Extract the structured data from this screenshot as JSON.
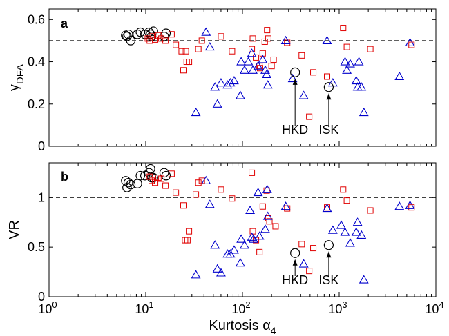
{
  "chart_data": [
    {
      "panel": "a",
      "type": "scatter",
      "xscale": "log",
      "xlim": [
        1,
        10000
      ],
      "ylim": [
        0,
        0.65
      ],
      "ylabel": "γ",
      "ylabel_sub": "DFA",
      "xlabel": "",
      "yticks": [
        "0",
        "0.2",
        "0.4",
        "0.6"
      ],
      "reference_line": 0.5,
      "grid": false,
      "series": [
        {
          "marker": "circle",
          "color": "#000000",
          "points": [
            [
              6.2,
              0.525
            ],
            [
              6.4,
              0.52
            ],
            [
              6.6,
              0.53
            ],
            [
              7,
              0.5
            ],
            [
              8.2,
              0.53
            ],
            [
              8.8,
              0.54
            ],
            [
              9.8,
              0.53
            ],
            [
              10.8,
              0.54
            ],
            [
              11.2,
              0.53
            ],
            [
              11.5,
              0.52
            ],
            [
              12,
              0.545
            ],
            [
              15.5,
              0.52
            ],
            [
              16.2,
              0.535
            ]
          ]
        },
        {
          "marker": "square",
          "color": "#e00000",
          "points": [
            [
              10.5,
              0.51
            ],
            [
              11,
              0.5
            ],
            [
              11.5,
              0.52
            ],
            [
              12.5,
              0.505
            ],
            [
              13.5,
              0.525
            ],
            [
              14.5,
              0.51
            ],
            [
              16,
              0.5
            ],
            [
              18.5,
              0.53
            ],
            [
              20.5,
              0.48
            ],
            [
              23.5,
              0.45
            ],
            [
              24.5,
              0.36
            ],
            [
              26,
              0.45
            ],
            [
              26.5,
              0.4
            ],
            [
              28,
              0.4
            ],
            [
              35,
              0.46
            ],
            [
              38,
              0.5
            ],
            [
              60,
              0.52
            ],
            [
              78,
              0.45
            ],
            [
              125,
              0.46
            ],
            [
              128,
              0.51
            ],
            [
              138,
              0.42
            ],
            [
              150,
              0.38
            ],
            [
              152,
              0.37
            ],
            [
              162,
              0.44
            ],
            [
              170,
              0.495
            ],
            [
              180,
              0.55
            ],
            [
              185,
              0.51
            ],
            [
              200,
              0.38
            ],
            [
              210,
              0.41
            ],
            [
              290,
              0.49
            ],
            [
              410,
              0.43
            ],
            [
              490,
              0.14
            ],
            [
              540,
              0.35
            ],
            [
              750,
              0.33
            ],
            [
              1100,
              0.56
            ],
            [
              1200,
              0.47
            ],
            [
              2100,
              0.46
            ],
            [
              5600,
              0.48
            ]
          ]
        },
        {
          "marker": "triangle",
          "color": "#0000cc",
          "points": [
            [
              33,
              0.16
            ],
            [
              42,
              0.54
            ],
            [
              46,
              0.47
            ],
            [
              52,
              0.28
            ],
            [
              55,
              0.2
            ],
            [
              60,
              0.3
            ],
            [
              70,
              0.29
            ],
            [
              75,
              0.3
            ],
            [
              82,
              0.31
            ],
            [
              95,
              0.24
            ],
            [
              97,
              0.4
            ],
            [
              105,
              0.36
            ],
            [
              115,
              0.4
            ],
            [
              125,
              0.44
            ],
            [
              128,
              0.36
            ],
            [
              145,
              0.38
            ],
            [
              162,
              0.41
            ],
            [
              172,
              0.36
            ],
            [
              178,
              0.34
            ],
            [
              183,
              0.29
            ],
            [
              280,
              0.5
            ],
            [
              330,
              0.32
            ],
            [
              430,
              0.24
            ],
            [
              750,
              0.5
            ],
            [
              860,
              0.3
            ],
            [
              1150,
              0.4
            ],
            [
              1200,
              0.36
            ],
            [
              1300,
              0.39
            ],
            [
              1500,
              0.31
            ],
            [
              1550,
              0.28
            ],
            [
              1600,
              0.4
            ],
            [
              1700,
              0.28
            ],
            [
              1800,
              0.16
            ],
            [
              4200,
              0.33
            ],
            [
              5400,
              0.49
            ]
          ]
        }
      ],
      "annotations": [
        {
          "label": "HKD",
          "x": 350,
          "y": 0.35
        },
        {
          "label": "ISK",
          "x": 780,
          "y": 0.28
        }
      ]
    },
    {
      "panel": "b",
      "type": "scatter",
      "xscale": "log",
      "xlim": [
        1,
        10000
      ],
      "ylim": [
        0,
        1.35
      ],
      "ylabel": "VR",
      "xlabel": "Kurtosis α",
      "xlabel_sub": "4",
      "yticks": [
        "0",
        "0.5",
        "1"
      ],
      "xticks": [
        {
          "base": "10",
          "exp": "0"
        },
        {
          "base": "10",
          "exp": "1"
        },
        {
          "base": "10",
          "exp": "2"
        },
        {
          "base": "10",
          "exp": "3"
        },
        {
          "base": "10",
          "exp": "4"
        }
      ],
      "reference_line": 1.0,
      "grid": false,
      "series": [
        {
          "marker": "circle",
          "color": "#000000",
          "points": [
            [
              6.2,
              1.17
            ],
            [
              6.4,
              1.1
            ],
            [
              6.6,
              1.15
            ],
            [
              7,
              1.13
            ],
            [
              8.2,
              1.14
            ],
            [
              8.8,
              1.22
            ],
            [
              9.8,
              1.22
            ],
            [
              10.8,
              1.25
            ],
            [
              11.2,
              1.29
            ],
            [
              11.5,
              1.2
            ],
            [
              12,
              1.2
            ],
            [
              15.5,
              1.25
            ],
            [
              16.2,
              1.22
            ]
          ]
        },
        {
          "marker": "square",
          "color": "#e00000",
          "points": [
            [
              11,
              1.21
            ],
            [
              11.5,
              1.17
            ],
            [
              12.5,
              1.15
            ],
            [
              13.5,
              1.2
            ],
            [
              14.5,
              1.19
            ],
            [
              16,
              1.12
            ],
            [
              18.5,
              1.24
            ],
            [
              20.5,
              1.05
            ],
            [
              24.5,
              0.92
            ],
            [
              25.5,
              0.57
            ],
            [
              27,
              0.57
            ],
            [
              28,
              0.66
            ],
            [
              33,
              1.03
            ],
            [
              35,
              1.15
            ],
            [
              38,
              1.17
            ],
            [
              60,
              1.08
            ],
            [
              78,
              0.99
            ],
            [
              125,
              1.25
            ],
            [
              128,
              0.66
            ],
            [
              138,
              0.57
            ],
            [
              150,
              0.45
            ],
            [
              162,
              0.91
            ],
            [
              178,
              1.07
            ],
            [
              185,
              0.79
            ],
            [
              190,
              0.76
            ],
            [
              220,
              0.71
            ],
            [
              290,
              0.89
            ],
            [
              410,
              0.53
            ],
            [
              490,
              0.26
            ],
            [
              540,
              0.49
            ],
            [
              750,
              0.9
            ],
            [
              1100,
              1.08
            ],
            [
              1200,
              0.97
            ],
            [
              2100,
              0.87
            ],
            [
              5600,
              0.9
            ]
          ]
        },
        {
          "marker": "triangle",
          "color": "#0000cc",
          "points": [
            [
              33,
              0.22
            ],
            [
              42,
              1.17
            ],
            [
              46,
              0.93
            ],
            [
              52,
              0.52
            ],
            [
              55,
              0.28
            ],
            [
              60,
              0.24
            ],
            [
              70,
              0.43
            ],
            [
              75,
              0.43
            ],
            [
              82,
              0.47
            ],
            [
              95,
              0.34
            ],
            [
              97,
              0.58
            ],
            [
              105,
              0.52
            ],
            [
              120,
              0.87
            ],
            [
              125,
              0.6
            ],
            [
              130,
              0.58
            ],
            [
              145,
              1.05
            ],
            [
              150,
              0.61
            ],
            [
              172,
              0.68
            ],
            [
              180,
              1.08
            ],
            [
              183,
              0.81
            ],
            [
              280,
              0.91
            ],
            [
              430,
              0.33
            ],
            [
              750,
              0.89
            ],
            [
              860,
              0.67
            ],
            [
              1050,
              0.72
            ],
            [
              1150,
              0.65
            ],
            [
              1300,
              0.54
            ],
            [
              1500,
              0.65
            ],
            [
              1550,
              0.75
            ],
            [
              1700,
              0.62
            ],
            [
              1800,
              0.17
            ],
            [
              4200,
              0.91
            ],
            [
              5400,
              0.92
            ]
          ]
        }
      ],
      "annotations": [
        {
          "label": "HKD",
          "x": 350,
          "y": 0.44
        },
        {
          "label": "ISK",
          "x": 780,
          "y": 0.52
        }
      ]
    }
  ]
}
